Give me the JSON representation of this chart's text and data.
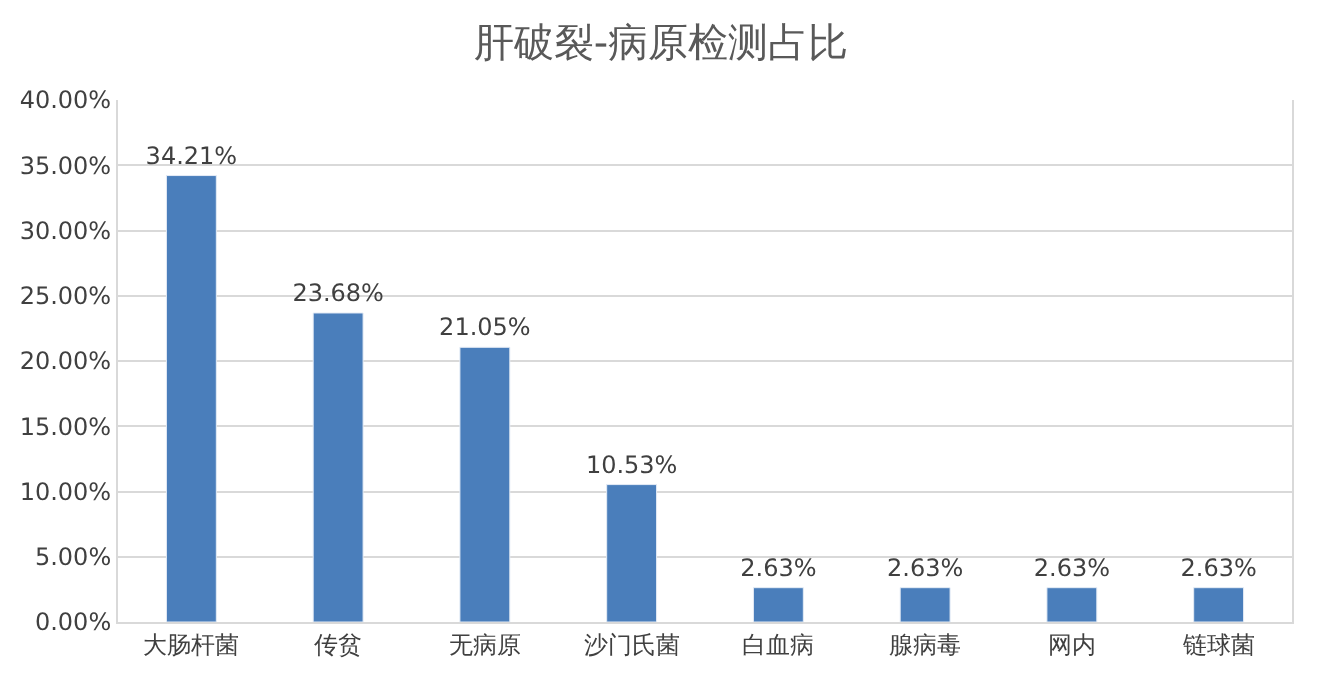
{
  "chart_data": {
    "type": "bar",
    "title": "肝破裂-病原检测占比",
    "categories": [
      "大肠杆菌",
      "传贫",
      "无病原",
      "沙门氏菌",
      "白血病",
      "腺病毒",
      "网内",
      "链球菌"
    ],
    "values": [
      34.21,
      23.68,
      21.05,
      10.53,
      2.63,
      2.63,
      2.63,
      2.63
    ],
    "value_labels": [
      "34.21%",
      "23.68%",
      "21.05%",
      "10.53%",
      "2.63%",
      "2.63%",
      "2.63%",
      "2.63%"
    ],
    "color": "#4a7ebb",
    "ylim": [
      0,
      40
    ],
    "yticks": [
      {
        "value": 0,
        "label": "0.00%"
      },
      {
        "value": 5,
        "label": "5.00%"
      },
      {
        "value": 10,
        "label": "10.00%"
      },
      {
        "value": 15,
        "label": "15.00%"
      },
      {
        "value": 20,
        "label": "20.00%"
      },
      {
        "value": 25,
        "label": "25.00%"
      },
      {
        "value": 30,
        "label": "30.00%"
      },
      {
        "value": 35,
        "label": "35.00%"
      },
      {
        "value": 40,
        "label": "40.00%"
      }
    ],
    "grid": "y"
  }
}
